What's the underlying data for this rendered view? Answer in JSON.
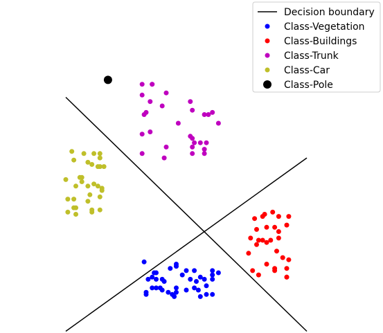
{
  "chart_data": {
    "type": "scatter",
    "axes_visible": false,
    "grid": false,
    "legend": {
      "placement": "top-right",
      "entries": [
        {
          "label": "Decision boundary",
          "marker": "line",
          "color": "#000000"
        },
        {
          "label": "Class-Vegetation",
          "marker": "dot",
          "color": "#0000ff"
        },
        {
          "label": "Class-Buildings",
          "marker": "dot",
          "color": "#ff0000"
        },
        {
          "label": "Class-Trunk",
          "marker": "dot",
          "color": "#bf00bf"
        },
        {
          "label": "Class-Car",
          "marker": "dot",
          "color": "#bfbf2a"
        },
        {
          "label": "Class-Pole",
          "marker": "big-dot",
          "color": "#000000"
        }
      ]
    },
    "lines": [
      {
        "name": "Decision boundary",
        "color": "#000000",
        "points": [
          [
            -0.6,
            0.58
          ],
          [
            0.6,
            -0.5
          ]
        ]
      },
      {
        "name": "Decision boundary",
        "color": "#000000",
        "points": [
          [
            -0.6,
            -0.5
          ],
          [
            0.6,
            0.3
          ]
        ]
      }
    ],
    "series": [
      {
        "name": "Class-Vegetation",
        "color": "#0000ff",
        "size": 3.5,
        "points": [
          [
            -0.21,
            -0.18
          ],
          [
            -0.17,
            -0.25
          ],
          [
            -0.16,
            -0.23
          ],
          [
            -0.15,
            -0.23
          ],
          [
            -0.19,
            -0.26
          ],
          [
            -0.15,
            -0.26
          ],
          [
            -0.12,
            -0.26
          ],
          [
            -0.08,
            -0.21
          ],
          [
            -0.05,
            -0.19
          ],
          [
            -0.05,
            -0.2
          ],
          [
            0.0,
            -0.22
          ],
          [
            0.04,
            -0.22
          ],
          [
            0.07,
            -0.25
          ],
          [
            0.09,
            -0.26
          ],
          [
            0.13,
            -0.22
          ],
          [
            0.13,
            -0.24
          ],
          [
            0.16,
            -0.23
          ],
          [
            -0.17,
            -0.3
          ],
          [
            -0.15,
            -0.3
          ],
          [
            -0.13,
            -0.3
          ],
          [
            -0.11,
            -0.27
          ],
          [
            -0.12,
            -0.31
          ],
          [
            -0.09,
            -0.32
          ],
          [
            -0.05,
            -0.3
          ],
          [
            -0.07,
            -0.33
          ],
          [
            -0.02,
            -0.24
          ],
          [
            0.02,
            -0.26
          ],
          [
            0.05,
            -0.27
          ],
          [
            0.0,
            -0.31
          ],
          [
            0.04,
            -0.3
          ],
          [
            0.1,
            -0.29
          ],
          [
            0.13,
            -0.26
          ],
          [
            -0.2,
            -0.32
          ],
          [
            -0.2,
            -0.33
          ],
          [
            -0.05,
            -0.32
          ],
          [
            0.06,
            -0.31
          ],
          [
            0.1,
            -0.33
          ],
          [
            0.13,
            -0.33
          ],
          [
            -0.06,
            -0.34
          ],
          [
            0.07,
            -0.34
          ]
        ]
      },
      {
        "name": "Class-Buildings",
        "color": "#ff0000",
        "size": 3.5,
        "points": [
          [
            0.34,
            0.02
          ],
          [
            0.38,
            0.03
          ],
          [
            0.39,
            0.04
          ],
          [
            0.43,
            0.05
          ],
          [
            0.46,
            0.03
          ],
          [
            0.51,
            0.03
          ],
          [
            0.35,
            -0.03
          ],
          [
            0.4,
            -0.02
          ],
          [
            0.44,
            -0.02
          ],
          [
            0.46,
            -0.04
          ],
          [
            0.5,
            -0.01
          ],
          [
            0.32,
            -0.07
          ],
          [
            0.36,
            -0.08
          ],
          [
            0.38,
            -0.08
          ],
          [
            0.4,
            -0.09
          ],
          [
            0.42,
            -0.08
          ],
          [
            0.46,
            -0.07
          ],
          [
            0.35,
            -0.1
          ],
          [
            0.31,
            -0.14
          ],
          [
            0.45,
            -0.13
          ],
          [
            0.48,
            -0.16
          ],
          [
            0.51,
            -0.17
          ],
          [
            0.4,
            -0.19
          ],
          [
            0.44,
            -0.21
          ],
          [
            0.44,
            -0.22
          ],
          [
            0.5,
            -0.21
          ],
          [
            0.33,
            -0.22
          ],
          [
            0.36,
            -0.24
          ],
          [
            0.5,
            -0.25
          ],
          [
            0.5,
            -0.25
          ]
        ]
      },
      {
        "name": "Class-Trunk",
        "color": "#bf00bf",
        "size": 3.5,
        "points": [
          [
            -0.22,
            0.64
          ],
          [
            -0.17,
            0.64
          ],
          [
            -0.17,
            0.64
          ],
          [
            -0.1,
            0.6
          ],
          [
            -0.22,
            0.59
          ],
          [
            -0.18,
            0.56
          ],
          [
            0.02,
            0.56
          ],
          [
            -0.12,
            0.54
          ],
          [
            0.03,
            0.52
          ],
          [
            -0.2,
            0.51
          ],
          [
            -0.21,
            0.5
          ],
          [
            0.11,
            0.5
          ],
          [
            0.13,
            0.51
          ],
          [
            0.09,
            0.5
          ],
          [
            0.16,
            0.46
          ],
          [
            -0.04,
            0.46
          ],
          [
            -0.22,
            0.41
          ],
          [
            -0.18,
            0.42
          ],
          [
            0.02,
            0.4
          ],
          [
            0.03,
            0.39
          ],
          [
            0.04,
            0.37
          ],
          [
            0.07,
            0.37
          ],
          [
            0.1,
            0.37
          ],
          [
            -0.1,
            0.35
          ],
          [
            0.03,
            0.35
          ],
          [
            0.09,
            0.34
          ],
          [
            -0.22,
            0.32
          ],
          [
            0.03,
            0.32
          ],
          [
            0.09,
            0.32
          ],
          [
            -0.11,
            0.3
          ]
        ]
      },
      {
        "name": "Class-Car",
        "color": "#bfbf2a",
        "size": 3.5,
        "points": [
          [
            -0.57,
            0.33
          ],
          [
            -0.51,
            0.32
          ],
          [
            -0.46,
            0.32
          ],
          [
            -0.43,
            0.3
          ],
          [
            -0.56,
            0.29
          ],
          [
            -0.49,
            0.28
          ],
          [
            -0.47,
            0.27
          ],
          [
            -0.44,
            0.26
          ],
          [
            -0.43,
            0.26
          ],
          [
            -0.41,
            0.26
          ],
          [
            -0.43,
            0.32
          ],
          [
            -0.6,
            0.2
          ],
          [
            -0.53,
            0.21
          ],
          [
            -0.52,
            0.21
          ],
          [
            -0.52,
            0.19
          ],
          [
            -0.49,
            0.17
          ],
          [
            -0.46,
            0.18
          ],
          [
            -0.44,
            0.17
          ],
          [
            -0.42,
            0.15
          ],
          [
            -0.42,
            0.16
          ],
          [
            -0.55,
            0.17
          ],
          [
            -0.48,
            0.13
          ],
          [
            -0.43,
            0.12
          ],
          [
            -0.56,
            0.11
          ],
          [
            -0.49,
            0.1
          ],
          [
            -0.59,
            0.11
          ],
          [
            -0.56,
            0.07
          ],
          [
            -0.59,
            0.05
          ],
          [
            -0.47,
            0.06
          ],
          [
            -0.47,
            0.05
          ],
          [
            -0.43,
            0.06
          ],
          [
            -0.55,
            0.04
          ],
          [
            -0.55,
            0.07
          ]
        ]
      },
      {
        "name": "Class-Pole",
        "color": "#000000",
        "size": 6,
        "points": [
          [
            -0.39,
            0.66
          ]
        ]
      }
    ]
  }
}
